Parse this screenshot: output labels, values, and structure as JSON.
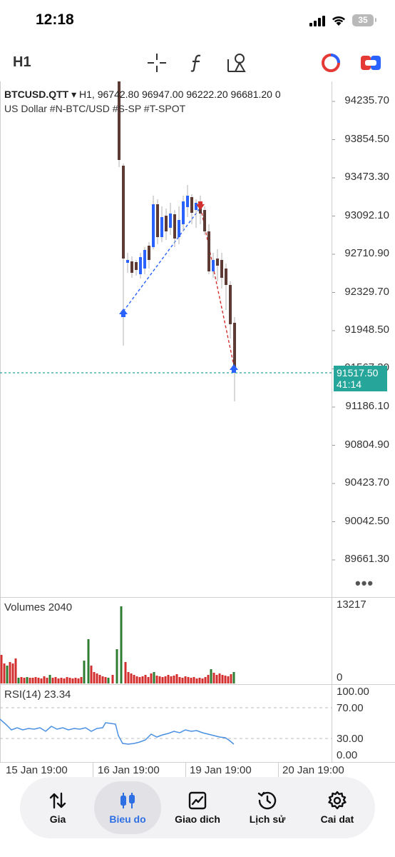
{
  "status": {
    "time": "12:18",
    "battery": "35"
  },
  "toolbar": {
    "timeframe": "H1",
    "tools": [
      "crosshair-icon",
      "function-icon",
      "objects-icon",
      "trade-icon",
      "one-click-icon"
    ]
  },
  "chart": {
    "symbol": "BTCUSD.QTT",
    "dropdown": "▾",
    "ohlc": "H1, 96742.80 96947.00 96222.20 96681.20 0",
    "description": "US Dollar #N-BTC/USD #S-SP #T-SPOT",
    "price_labels": [
      "94235.70",
      "93854.50",
      "93473.30",
      "93092.10",
      "92710.90",
      "92329.70",
      "91948.50",
      "91567.30",
      "91186.10",
      "90804.90",
      "90423.70",
      "90042.50",
      "89661.30"
    ],
    "current_price": "91517.50",
    "timer": "41:14",
    "more": "•••",
    "colors": {
      "up": "#2962ff",
      "down": "#5d3a34",
      "vol_up": "#2e7d32",
      "vol_down": "#d32f2f",
      "current": "#26a69a",
      "rsi": "#4a90e2"
    }
  },
  "volumes": {
    "label": "Volumes 2040",
    "max": "13217",
    "min": "0"
  },
  "rsi": {
    "label": "RSI(14) 23.34",
    "levels": [
      "100.00",
      "70.00",
      "30.00",
      "0.00"
    ]
  },
  "x_axis": {
    "dates": [
      "15 Jan 19:00",
      "16 Jan 19:00",
      "19 Jan 19:00",
      "20 Jan 19:00"
    ]
  },
  "nav": {
    "items": [
      {
        "label": "Gia",
        "icon": "quotes-icon"
      },
      {
        "label": "Bieu do",
        "icon": "chart-icon"
      },
      {
        "label": "Giao dich",
        "icon": "trade-icon"
      },
      {
        "label": "Lịch sử",
        "icon": "history-icon"
      },
      {
        "label": "Cai dat",
        "icon": "settings-icon"
      }
    ],
    "active": "Bieu do"
  }
}
